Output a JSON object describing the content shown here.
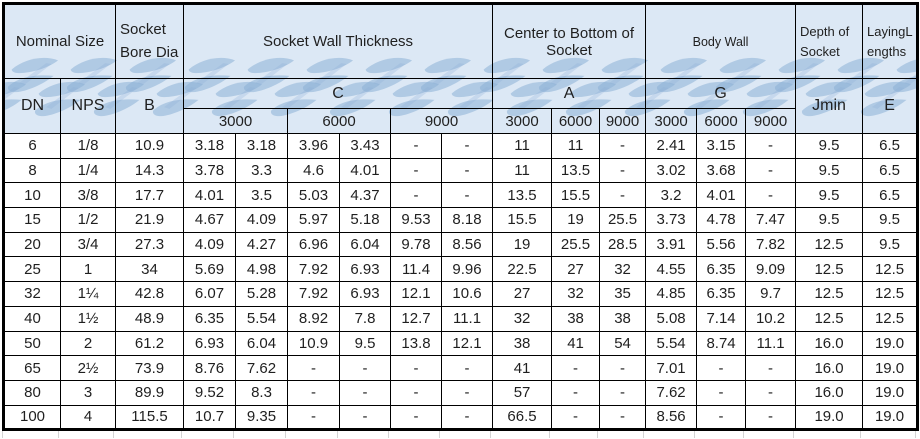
{
  "colors": {
    "header_bg": "#dce8f5",
    "watermark_blue": "#8eb0d6",
    "border": "#000000",
    "text": "#1f1f1f"
  },
  "header": {
    "nominal_size": "Nominal Size",
    "socket_bore_dia": "Socket Bore Dia",
    "socket_wall_thickness": "Socket Wall Thickness",
    "center_to_bottom_of_socket": "Center to Bottom of Socket",
    "body_wall": "Body Wall",
    "depth_of_socket": "Depth of Socket",
    "laying_lengths": "LayingL\nengths",
    "dn": "DN",
    "nps": "NPS",
    "b": "B",
    "c": "C",
    "a": "A",
    "g": "G",
    "jmin": "Jmin",
    "e": "E",
    "pressure_classes": [
      "3000",
      "6000",
      "9000"
    ]
  },
  "rows": [
    {
      "dn": "6",
      "nps": "1/8",
      "b": "10.9",
      "c": [
        "3.18",
        "3.18",
        "3.96",
        "3.43",
        "-",
        "-"
      ],
      "a": [
        "11",
        "11",
        "-"
      ],
      "g": [
        "2.41",
        "3.15",
        "-"
      ],
      "jmin": "9.5",
      "e": "6.5"
    },
    {
      "dn": "8",
      "nps": "1/4",
      "b": "14.3",
      "c": [
        "3.78",
        "3.3",
        "4.6",
        "4.01",
        "-",
        "-"
      ],
      "a": [
        "11",
        "13.5",
        "-"
      ],
      "g": [
        "3.02",
        "3.68",
        "-"
      ],
      "jmin": "9.5",
      "e": "6.5"
    },
    {
      "dn": "10",
      "nps": "3/8",
      "b": "17.7",
      "c": [
        "4.01",
        "3.5",
        "5.03",
        "4.37",
        "-",
        "-"
      ],
      "a": [
        "13.5",
        "15.5",
        "-"
      ],
      "g": [
        "3.2",
        "4.01",
        "-"
      ],
      "jmin": "9.5",
      "e": "6.5"
    },
    {
      "dn": "15",
      "nps": "1/2",
      "b": "21.9",
      "c": [
        "4.67",
        "4.09",
        "5.97",
        "5.18",
        "9.53",
        "8.18"
      ],
      "a": [
        "15.5",
        "19",
        "25.5"
      ],
      "g": [
        "3.73",
        "4.78",
        "7.47"
      ],
      "jmin": "9.5",
      "e": "9.5"
    },
    {
      "dn": "20",
      "nps": "3/4",
      "b": "27.3",
      "c": [
        "4.09",
        "4.27",
        "6.96",
        "6.04",
        "9.78",
        "8.56"
      ],
      "a": [
        "19",
        "25.5",
        "28.5"
      ],
      "g": [
        "3.91",
        "5.56",
        "7.82"
      ],
      "jmin": "12.5",
      "e": "9.5"
    },
    {
      "dn": "25",
      "nps": "1",
      "b": "34",
      "c": [
        "5.69",
        "4.98",
        "7.92",
        "6.93",
        "11.4",
        "9.96"
      ],
      "a": [
        "22.5",
        "27",
        "32"
      ],
      "g": [
        "4.55",
        "6.35",
        "9.09"
      ],
      "jmin": "12.5",
      "e": "12.5"
    },
    {
      "dn": "32",
      "nps": "1¼",
      "b": "42.8",
      "c": [
        "6.07",
        "5.28",
        "7.92",
        "6.93",
        "12.1",
        "10.6"
      ],
      "a": [
        "27",
        "32",
        "35"
      ],
      "g": [
        "4.85",
        "6.35",
        "9.7"
      ],
      "jmin": "12.5",
      "e": "12.5"
    },
    {
      "dn": "40",
      "nps": "1½",
      "b": "48.9",
      "c": [
        "6.35",
        "5.54",
        "8.92",
        "7.8",
        "12.7",
        "11.1"
      ],
      "a": [
        "32",
        "38",
        "38"
      ],
      "g": [
        "5.08",
        "7.14",
        "10.2"
      ],
      "jmin": "12.5",
      "e": "12.5"
    },
    {
      "dn": "50",
      "nps": "2",
      "b": "61.2",
      "c": [
        "6.93",
        "6.04",
        "10.9",
        "9.5",
        "13.8",
        "12.1"
      ],
      "a": [
        "38",
        "41",
        "54"
      ],
      "g": [
        "5.54",
        "8.74",
        "11.1"
      ],
      "jmin": "16.0",
      "e": "19.0"
    },
    {
      "dn": "65",
      "nps": "2½",
      "b": "73.9",
      "c": [
        "8.76",
        "7.62",
        "-",
        "-",
        "-",
        "-"
      ],
      "a": [
        "41",
        "-",
        "-"
      ],
      "g": [
        "7.01",
        "-",
        "-"
      ],
      "jmin": "16.0",
      "e": "19.0"
    },
    {
      "dn": "80",
      "nps": "3",
      "b": "89.9",
      "c": [
        "9.52",
        "8.3",
        "-",
        "-",
        "-",
        "-"
      ],
      "a": [
        "57",
        "-",
        "-"
      ],
      "g": [
        "7.62",
        "-",
        "-"
      ],
      "jmin": "16.0",
      "e": "19.0"
    },
    {
      "dn": "100",
      "nps": "4",
      "b": "115.5",
      "c": [
        "10.7",
        "9.35",
        "-",
        "-",
        "-",
        "-"
      ],
      "a": [
        "66.5",
        "-",
        "-"
      ],
      "g": [
        "8.56",
        "-",
        "-"
      ],
      "jmin": "19.0",
      "e": "19.0"
    }
  ]
}
